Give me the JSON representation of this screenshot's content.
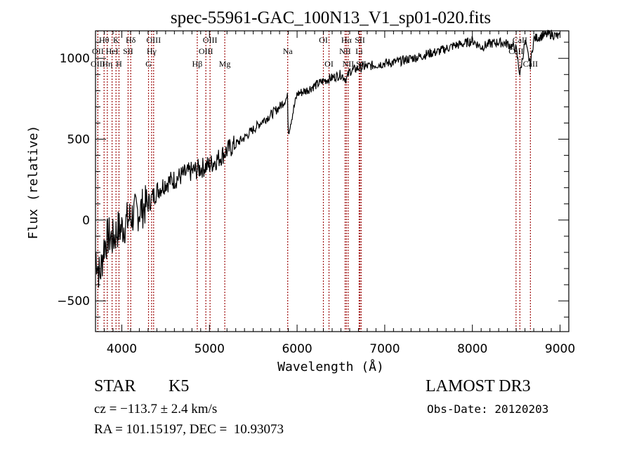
{
  "chart_data": {
    "type": "line",
    "title": "spec-55961-GAC_100N13_V1_sp01-020.fits",
    "xlabel": "Wavelength (Å)",
    "ylabel": "Flux (relative)",
    "xlim": [
      3700,
      9100
    ],
    "ylim": [
      -690,
      1170
    ],
    "xticks": [
      4000,
      5000,
      6000,
      7000,
      8000,
      9000
    ],
    "xtick_labels": [
      "4000",
      "5000",
      "6000",
      "7000",
      "8000",
      "9000"
    ],
    "yticks": [
      -500,
      0,
      500,
      1000
    ],
    "ytick_labels": [
      "−500",
      "0",
      "500",
      "1000"
    ],
    "grid": false,
    "legend": "none",
    "series": [
      {
        "name": "spectrum",
        "color": "#000000",
        "x": [
          3700,
          3750,
          3800,
          3850,
          3900,
          3950,
          4000,
          4100,
          4200,
          4300,
          4400,
          4500,
          4600,
          4700,
          4800,
          4900,
          5000,
          5100,
          5200,
          5300,
          5400,
          5500,
          5600,
          5700,
          5800,
          5890,
          5900,
          6000,
          6100,
          6200,
          6300,
          6400,
          6500,
          6563,
          6600,
          6700,
          6800,
          6900,
          7000,
          7100,
          7200,
          7300,
          7400,
          7500,
          7600,
          7700,
          7800,
          7900,
          8000,
          8100,
          8200,
          8300,
          8400,
          8498,
          8542,
          8600,
          8662,
          8700,
          8800,
          8900,
          9000
        ],
        "y": [
          -200,
          -350,
          -150,
          -100,
          -120,
          -60,
          -50,
          20,
          60,
          100,
          180,
          230,
          250,
          280,
          300,
          320,
          340,
          380,
          430,
          470,
          510,
          560,
          610,
          650,
          700,
          760,
          540,
          780,
          800,
          830,
          860,
          880,
          900,
          870,
          920,
          940,
          950,
          960,
          970,
          975,
          985,
          1000,
          1010,
          1030,
          1040,
          1060,
          1080,
          1090,
          1110,
          1070,
          1090,
          1100,
          1090,
          1060,
          900,
          1100,
          960,
          1120,
          1140,
          1150,
          1130
        ]
      }
    ],
    "spectral_lines": [
      {
        "label": "Hθ",
        "wavelength": 3798,
        "row": 1
      },
      {
        "label": "K",
        "wavelength": 3934,
        "row": 1
      },
      {
        "label": "Hδ",
        "wavelength": 4102,
        "row": 1
      },
      {
        "label": "OIII",
        "wavelength": 4363,
        "row": 1
      },
      {
        "label": "OIII",
        "wavelength": 5007,
        "row": 1
      },
      {
        "label": "OI",
        "wavelength": 6300,
        "row": 1
      },
      {
        "label": "Hα",
        "wavelength": 6563,
        "row": 1
      },
      {
        "label": "SII",
        "wavelength": 6717,
        "row": 1
      },
      {
        "label": "CaII",
        "wavelength": 8542,
        "row": 1
      },
      {
        "label": "OII",
        "wavelength": 3727,
        "row": 2
      },
      {
        "label": "HeI",
        "wavelength": 3889,
        "row": 2
      },
      {
        "label": "SII",
        "wavelength": 4072,
        "row": 2
      },
      {
        "label": "Hγ",
        "wavelength": 4340,
        "row": 2
      },
      {
        "label": "OIII",
        "wavelength": 4959,
        "row": 2
      },
      {
        "label": "Na",
        "wavelength": 5893,
        "row": 2
      },
      {
        "label": "NII",
        "wavelength": 6548,
        "row": 2
      },
      {
        "label": "Li",
        "wavelength": 6708,
        "row": 2
      },
      {
        "label": "CaII",
        "wavelength": 8498,
        "row": 2
      },
      {
        "label": "OIII",
        "wavelength": 3727,
        "row": 3
      },
      {
        "label": "Hη",
        "wavelength": 3835,
        "row": 3
      },
      {
        "label": "H",
        "wavelength": 3968,
        "row": 3
      },
      {
        "label": "G",
        "wavelength": 4305,
        "row": 3
      },
      {
        "label": "Hβ",
        "wavelength": 4861,
        "row": 3
      },
      {
        "label": "Mg",
        "wavelength": 5175,
        "row": 3
      },
      {
        "label": "OI",
        "wavelength": 6364,
        "row": 3
      },
      {
        "label": "NII",
        "wavelength": 6583,
        "row": 3
      },
      {
        "label": "SII",
        "wavelength": 6731,
        "row": 3
      },
      {
        "label": "CaII",
        "wavelength": 8662,
        "row": 3
      }
    ],
    "line_marker_color": "#a01010"
  },
  "info": {
    "class": "STAR",
    "subclass": "K5",
    "survey": "LAMOST DR3",
    "cz": "cz = −113.7 ± 2.4 km/s",
    "obs_date": "Obs-Date: 20120203",
    "coords": "RA = 101.15197, DEC =  10.93073"
  }
}
